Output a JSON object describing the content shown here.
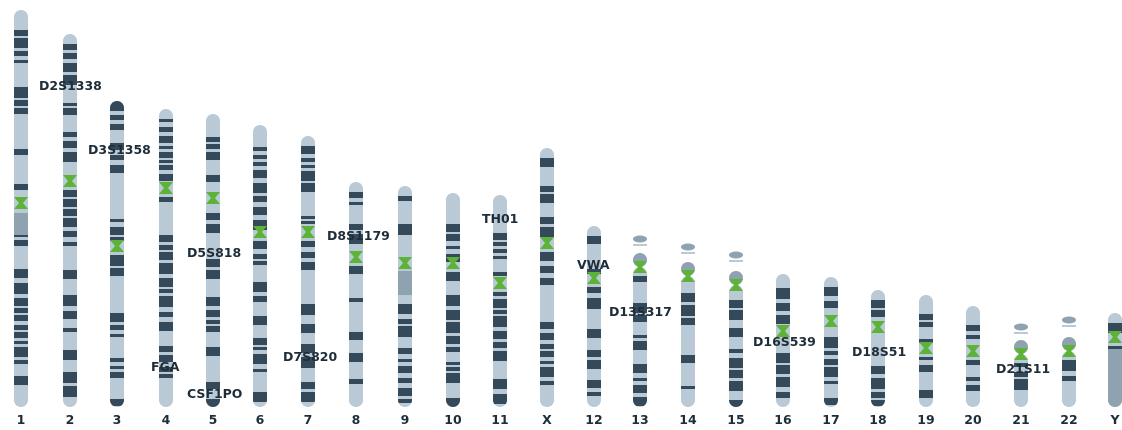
{
  "colors": {
    "light": "#b9cad6",
    "dark": "#34495a",
    "mid": "#8fa2b0",
    "centromere": "#5cb338",
    "text": "#1e2d38"
  },
  "chromosomes": [
    {
      "label": "1"
    },
    {
      "label": "2"
    },
    {
      "label": "3"
    },
    {
      "label": "4"
    },
    {
      "label": "5"
    },
    {
      "label": "6"
    },
    {
      "label": "7"
    },
    {
      "label": "8"
    },
    {
      "label": "9"
    },
    {
      "label": "10"
    },
    {
      "label": "11"
    },
    {
      "label": "X"
    },
    {
      "label": "12"
    },
    {
      "label": "13"
    },
    {
      "label": "14"
    },
    {
      "label": "15"
    },
    {
      "label": "16"
    },
    {
      "label": "17"
    },
    {
      "label": "18"
    },
    {
      "label": "19"
    },
    {
      "label": "20"
    },
    {
      "label": "21"
    },
    {
      "label": "22"
    },
    {
      "label": "Y"
    }
  ],
  "markers": [
    {
      "name": "D2S1338",
      "chromosome": "2"
    },
    {
      "name": "D3S1358",
      "chromosome": "3"
    },
    {
      "name": "D5S818",
      "chromosome": "5"
    },
    {
      "name": "FGA",
      "chromosome": "4"
    },
    {
      "name": "CSF1PO",
      "chromosome": "5"
    },
    {
      "name": "D7S820",
      "chromosome": "7"
    },
    {
      "name": "D8S1179",
      "chromosome": "8"
    },
    {
      "name": "TH01",
      "chromosome": "11"
    },
    {
      "name": "VWA",
      "chromosome": "12"
    },
    {
      "name": "D13S317",
      "chromosome": "13"
    },
    {
      "name": "D16S539",
      "chromosome": "16"
    },
    {
      "name": "D18S51",
      "chromosome": "18"
    },
    {
      "name": "D21S11",
      "chromosome": "21"
    }
  ]
}
